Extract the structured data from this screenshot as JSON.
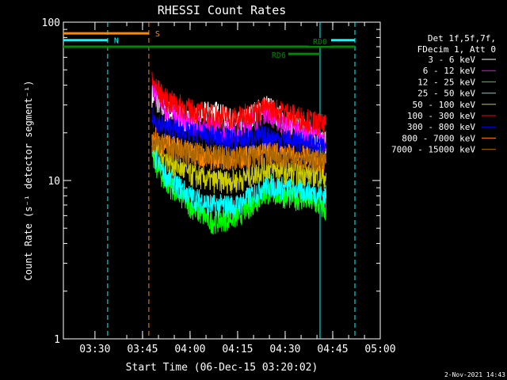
{
  "chart_data": {
    "type": "line",
    "title": "RHESSI Count Rates",
    "ylabel": "Count Rate (s⁻¹ detector segment⁻¹)",
    "xlabel": "Start Time (06-Dec-15 03:20:02)",
    "y_scale": "log",
    "ylim": [
      1,
      100
    ],
    "xlim": [
      "03:20:02",
      "05:00:00"
    ],
    "x_ticks": [
      "03:30",
      "03:45",
      "04:00",
      "04:15",
      "04:30",
      "04:45",
      "05:00"
    ],
    "y_ticks": [
      "1",
      "10",
      "100"
    ],
    "timestamp": "2-Nov-2021 14:43",
    "legend": {
      "header": [
        "Det 1f,5f,7f,",
        "FDecim 1, Att 0"
      ],
      "placement": "right"
    },
    "series": [
      {
        "name": "3 - 6 keV",
        "color": "#ffffff",
        "values": [
          [
            "03:48:00",
            35
          ],
          [
            "03:52:00",
            28
          ],
          [
            "04:00:00",
            24
          ],
          [
            "04:07:00",
            28
          ],
          [
            "04:15:00",
            23
          ],
          [
            "04:24:00",
            30
          ],
          [
            "04:30:00",
            24
          ],
          [
            "04:38:00",
            21
          ],
          [
            "04:43:00",
            17
          ]
        ]
      },
      {
        "name": "6 - 12 keV",
        "color": "#ff00ff",
        "values": [
          [
            "03:48:00",
            38
          ],
          [
            "03:52:00",
            29
          ],
          [
            "04:00:00",
            23
          ],
          [
            "04:07:00",
            22
          ],
          [
            "04:15:00",
            20
          ],
          [
            "04:24:00",
            28
          ],
          [
            "04:30:00",
            22
          ],
          [
            "04:38:00",
            20
          ],
          [
            "04:43:00",
            18
          ]
        ]
      },
      {
        "name": "12 - 25 keV",
        "color": "#00ff00",
        "values": [
          [
            "03:48:00",
            14
          ],
          [
            "03:52:00",
            10
          ],
          [
            "04:00:00",
            7
          ],
          [
            "04:07:00",
            5.5
          ],
          [
            "04:15:00",
            6
          ],
          [
            "04:24:00",
            8.5
          ],
          [
            "04:30:00",
            8
          ],
          [
            "04:38:00",
            7.5
          ],
          [
            "04:43:00",
            6.5
          ]
        ]
      },
      {
        "name": "25 - 50 keV",
        "color": "#00ffff",
        "values": [
          [
            "03:48:00",
            15
          ],
          [
            "03:52:00",
            11
          ],
          [
            "04:00:00",
            8
          ],
          [
            "04:07:00",
            7
          ],
          [
            "04:15:00",
            7
          ],
          [
            "04:24:00",
            9.5
          ],
          [
            "04:30:00",
            9
          ],
          [
            "04:38:00",
            8.5
          ],
          [
            "04:43:00",
            8
          ]
        ]
      },
      {
        "name": "50 - 100 keV",
        "color": "#cccc00",
        "values": [
          [
            "03:48:00",
            18
          ],
          [
            "03:52:00",
            14
          ],
          [
            "04:00:00",
            11
          ],
          [
            "04:07:00",
            10
          ],
          [
            "04:15:00",
            10
          ],
          [
            "04:24:00",
            12
          ],
          [
            "04:30:00",
            11.5
          ],
          [
            "04:38:00",
            11
          ],
          [
            "04:43:00",
            10.5
          ]
        ]
      },
      {
        "name": "100 - 300 keV",
        "color": "#ff0000",
        "values": [
          [
            "03:48:00",
            42
          ],
          [
            "03:52:00",
            33
          ],
          [
            "04:00:00",
            28
          ],
          [
            "04:07:00",
            26
          ],
          [
            "04:15:00",
            25
          ],
          [
            "04:24:00",
            29
          ],
          [
            "04:30:00",
            27
          ],
          [
            "04:38:00",
            24
          ],
          [
            "04:43:00",
            22
          ]
        ]
      },
      {
        "name": "300 - 800 keV",
        "color": "#0000ff",
        "values": [
          [
            "03:48:00",
            25
          ],
          [
            "03:52:00",
            22
          ],
          [
            "04:00:00",
            20
          ],
          [
            "04:07:00",
            19
          ],
          [
            "04:15:00",
            18
          ],
          [
            "04:24:00",
            19
          ],
          [
            "04:30:00",
            18
          ],
          [
            "04:38:00",
            17
          ],
          [
            "04:43:00",
            16
          ]
        ]
      },
      {
        "name": "800 - 7000 keV",
        "color": "#ff8800",
        "values": [
          [
            "03:48:00",
            20
          ],
          [
            "03:52:00",
            17
          ],
          [
            "04:00:00",
            15
          ],
          [
            "04:07:00",
            14
          ],
          [
            "04:15:00",
            14
          ],
          [
            "04:24:00",
            15
          ],
          [
            "04:30:00",
            14.5
          ],
          [
            "04:38:00",
            14
          ],
          [
            "04:43:00",
            13
          ]
        ]
      },
      {
        "name": "7000 - 15000 keV",
        "color": "#aa6600",
        "values": [
          [
            "03:48:00",
            18
          ],
          [
            "03:52:00",
            16
          ],
          [
            "04:00:00",
            15
          ],
          [
            "04:07:00",
            14.5
          ],
          [
            "04:15:00",
            14
          ],
          [
            "04:24:00",
            14.5
          ],
          [
            "04:30:00",
            14
          ],
          [
            "04:38:00",
            13.5
          ],
          [
            "04:43:00",
            13
          ]
        ]
      }
    ],
    "flags": [
      {
        "label": "S",
        "color": "#ff8800",
        "start": "03:20:02",
        "end": "03:47:00",
        "level": 85,
        "label_side": "right"
      },
      {
        "label": "N",
        "color": "#00ffff",
        "start": "03:20:02",
        "end": "03:34:00",
        "level": 77,
        "label_side": "right"
      },
      {
        "label": "N",
        "color": "#00ffff",
        "start": "04:42:00",
        "end": "04:52:00",
        "level": 77,
        "label_side": "none"
      },
      {
        "label": "RD0",
        "color": "#008800",
        "start": "03:20:02",
        "end": "04:52:00",
        "level": 70,
        "label_side": "inline"
      },
      {
        "label": "RD6",
        "color": "#008800",
        "start": "04:31:00",
        "end": "04:41:00",
        "level": 63,
        "label_side": "left"
      }
    ],
    "vlines": [
      {
        "time": "03:34:00",
        "color": "#00ffff",
        "style": "dash"
      },
      {
        "time": "03:47:00",
        "color": "#ff8800",
        "style": "dash"
      },
      {
        "time": "04:41:00",
        "color": "#00ffff",
        "style": "solid"
      },
      {
        "time": "04:52:00",
        "color": "#00ffff",
        "style": "dash"
      }
    ]
  }
}
